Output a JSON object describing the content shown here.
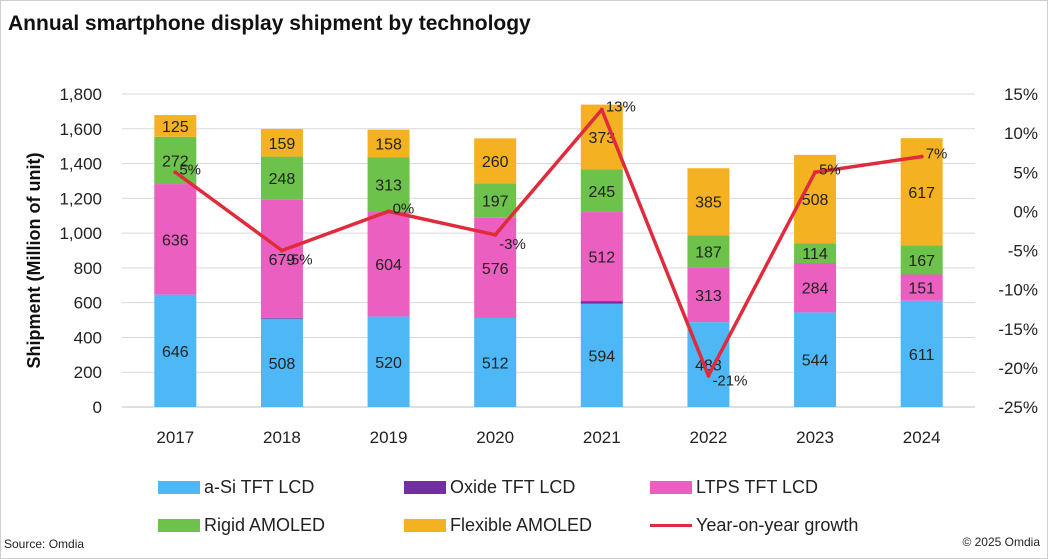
{
  "title": "Annual smartphone display shipment by technology",
  "source": "Source: Omdia",
  "copyright": "© 2025 Omdia",
  "chart_data": {
    "type": "bar",
    "stacked": true,
    "title": "Annual smartphone display shipment by technology",
    "categories": [
      "2017",
      "2018",
      "2019",
      "2020",
      "2021",
      "2022",
      "2023",
      "2024"
    ],
    "ylabel": "Shipment (Million of unit)",
    "ylim": [
      0,
      1800
    ],
    "yticks": [
      "0",
      "200",
      "400",
      "600",
      "800",
      "1,000",
      "1,200",
      "1,400",
      "1,600",
      "1,800"
    ],
    "y2lim": [
      -25,
      15
    ],
    "y2ticks": [
      "-25%",
      "-20%",
      "-15%",
      "-10%",
      "-5%",
      "0%",
      "5%",
      "10%",
      "15%"
    ],
    "grid": true,
    "legend_position": "bottom",
    "series": [
      {
        "name": "a-Si TFT LCD",
        "color": "#4db8f5",
        "values": [
          646,
          508,
          520,
          512,
          594,
          488,
          544,
          611
        ],
        "labels": [
          "646",
          "508",
          "520",
          "512",
          "594",
          "488",
          "544",
          "611"
        ]
      },
      {
        "name": "Oxide TFT LCD",
        "color": "#7030a0",
        "values": [
          0,
          5,
          0,
          0,
          15,
          0,
          0,
          0
        ],
        "labels": [
          "",
          "",
          "",
          "",
          "",
          "",
          "",
          ""
        ]
      },
      {
        "name": "LTPS TFT LCD",
        "color": "#ea5fc0",
        "values": [
          636,
          679,
          604,
          576,
          512,
          313,
          284,
          151
        ],
        "labels": [
          "636",
          "679",
          "604",
          "576",
          "512",
          "313",
          "284",
          "151"
        ]
      },
      {
        "name": "Rigid AMOLED",
        "color": "#6cc24a",
        "values": [
          272,
          248,
          313,
          197,
          245,
          187,
          114,
          167
        ],
        "labels": [
          "272",
          "248",
          "313",
          "197",
          "245",
          "187",
          "114",
          "167"
        ]
      },
      {
        "name": "Flexible AMOLED",
        "color": "#f4b223",
        "values": [
          125,
          159,
          158,
          260,
          373,
          385,
          508,
          617
        ],
        "labels": [
          "125",
          "159",
          "158",
          "260",
          "373",
          "385",
          "508",
          "617"
        ]
      }
    ],
    "line_series": {
      "name": "Year-on-year growth",
      "color": "#e02b3c",
      "axis": "right",
      "values": [
        5,
        -5,
        0,
        -3,
        13,
        -21,
        5,
        7
      ],
      "labels": [
        "5%",
        "-5%",
        "0%",
        "-3%",
        "13%",
        "-21%",
        "5%",
        "7%"
      ]
    }
  }
}
